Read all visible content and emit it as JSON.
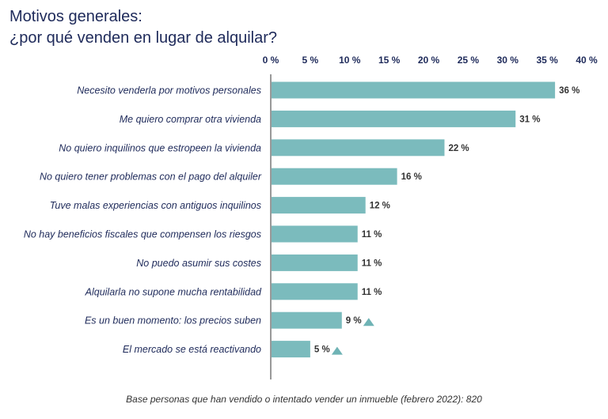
{
  "title": {
    "line1": "Motivos generales:",
    "line2": "¿por qué venden en lugar de alquilar?"
  },
  "chart_data": {
    "type": "bar",
    "orientation": "horizontal",
    "categories": [
      "Necesito venderla por motivos personales",
      "Me quiero comprar otra vivienda",
      "No quiero inquilinos que estropeen la vivienda",
      "No quiero tener problemas con el pago del alquiler",
      "Tuve malas experiencias con antiguos inquilinos",
      "No hay beneficios fiscales que compensen los riesgos",
      "No puedo asumir sus costes",
      "Alquilarla no supone mucha rentabilidad",
      "Es un buen momento: los precios suben",
      "El mercado se está reactivando"
    ],
    "values": [
      36,
      31,
      22,
      16,
      12,
      11,
      11,
      11,
      9,
      5
    ],
    "value_labels": [
      "36 %",
      "31 %",
      "22 %",
      "16 %",
      "12 %",
      "11 %",
      "11 %",
      "11 %",
      "9 %",
      "5 %"
    ],
    "trend_up": [
      false,
      false,
      false,
      false,
      false,
      false,
      false,
      false,
      true,
      true
    ],
    "ticks": [
      0,
      5,
      10,
      15,
      20,
      25,
      30,
      35,
      40
    ],
    "tick_labels": [
      "0 %",
      "5 %",
      "10 %",
      "15 %",
      "20 %",
      "25 %",
      "30 %",
      "35 %",
      "40 %"
    ],
    "xlim": [
      0,
      40
    ],
    "axis_position": "top",
    "grid": false,
    "bar_color": "#7bbbbd",
    "marker_color": "#6fb3b5",
    "text_color": "#1e2a5a"
  },
  "footnote": "Base personas que han vendido o intentado vender un inmueble (febrero 2022): 820"
}
